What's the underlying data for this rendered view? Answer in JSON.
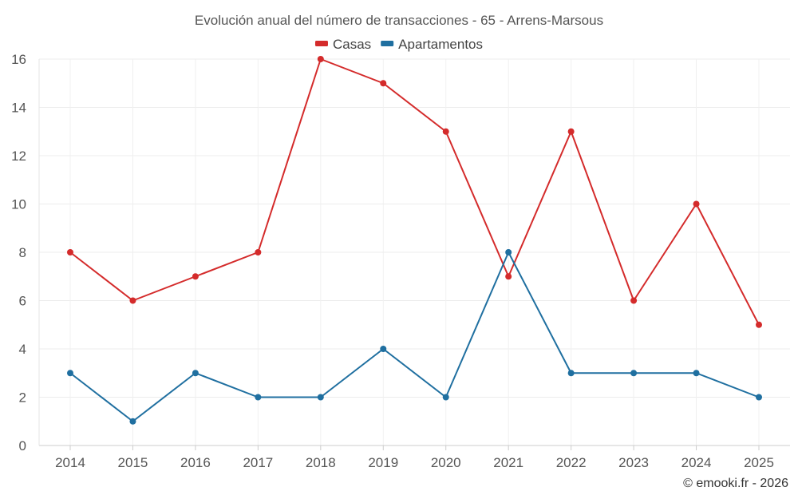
{
  "chart_data": {
    "type": "line",
    "title": "Evolución anual del número de transacciones - 65 - Arrens-Marsous",
    "categories": [
      "2014",
      "2015",
      "2016",
      "2017",
      "2018",
      "2019",
      "2020",
      "2021",
      "2022",
      "2023",
      "2024",
      "2025"
    ],
    "series": [
      {
        "name": "Casas",
        "color": "#d42b2b",
        "values": [
          8,
          6,
          7,
          8,
          16,
          15,
          13,
          7,
          13,
          6,
          10,
          5
        ]
      },
      {
        "name": "Apartamentos",
        "color": "#1f6fa0",
        "values": [
          3,
          1,
          3,
          2,
          2,
          4,
          2,
          8,
          3,
          3,
          3,
          2
        ]
      }
    ],
    "yticks": [
      "0",
      "2",
      "4",
      "6",
      "8",
      "10",
      "12",
      "14",
      "16"
    ],
    "ylim": [
      0,
      16
    ],
    "xlabel": "",
    "ylabel": "",
    "legend_position": "top-center",
    "grid": true
  },
  "credit": "© emooki.fr - 2026"
}
